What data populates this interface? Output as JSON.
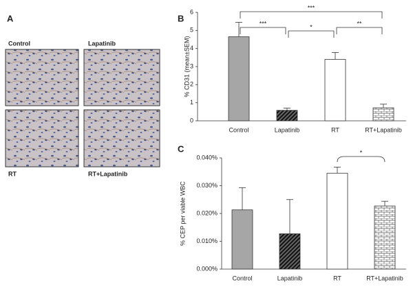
{
  "panel_a": {
    "label": "A",
    "images": [
      "Control",
      "Lapatinib",
      "RT",
      "RT+Lapatinib"
    ]
  },
  "chart_data": [
    {
      "type": "bar",
      "label": "B",
      "ylabel": "% CD31 (mean±SEM)",
      "categories": [
        "Control",
        "Lapatinib",
        "RT",
        "RT+Lapatinib"
      ],
      "values": [
        4.65,
        0.58,
        3.4,
        0.72
      ],
      "errors": [
        0.8,
        0.12,
        0.38,
        0.2
      ],
      "ylim": [
        0,
        6
      ],
      "yticks": [
        0,
        1,
        2,
        3,
        4,
        5,
        6
      ],
      "annotations": [
        "***",
        "*",
        "**",
        "***"
      ]
    },
    {
      "type": "bar",
      "label": "C",
      "ylabel": "% CEP per viable WBC",
      "categories": [
        "Control",
        "Lapatinib",
        "RT",
        "RT+Lapatinib"
      ],
      "values": [
        0.0213,
        0.0127,
        0.0345,
        0.0227
      ],
      "errors": [
        0.008,
        0.0123,
        0.0022,
        0.0017
      ],
      "ylim": [
        0,
        0.04
      ],
      "yticks": [
        {
          "value": 0,
          "label": "0.000%"
        },
        {
          "value": 0.01,
          "label": "0.010%"
        },
        {
          "value": 0.02,
          "label": "0.020%"
        },
        {
          "value": 0.03,
          "label": "0.030%"
        },
        {
          "value": 0.04,
          "label": "0.040%"
        }
      ],
      "annotations": [
        "*"
      ]
    }
  ]
}
